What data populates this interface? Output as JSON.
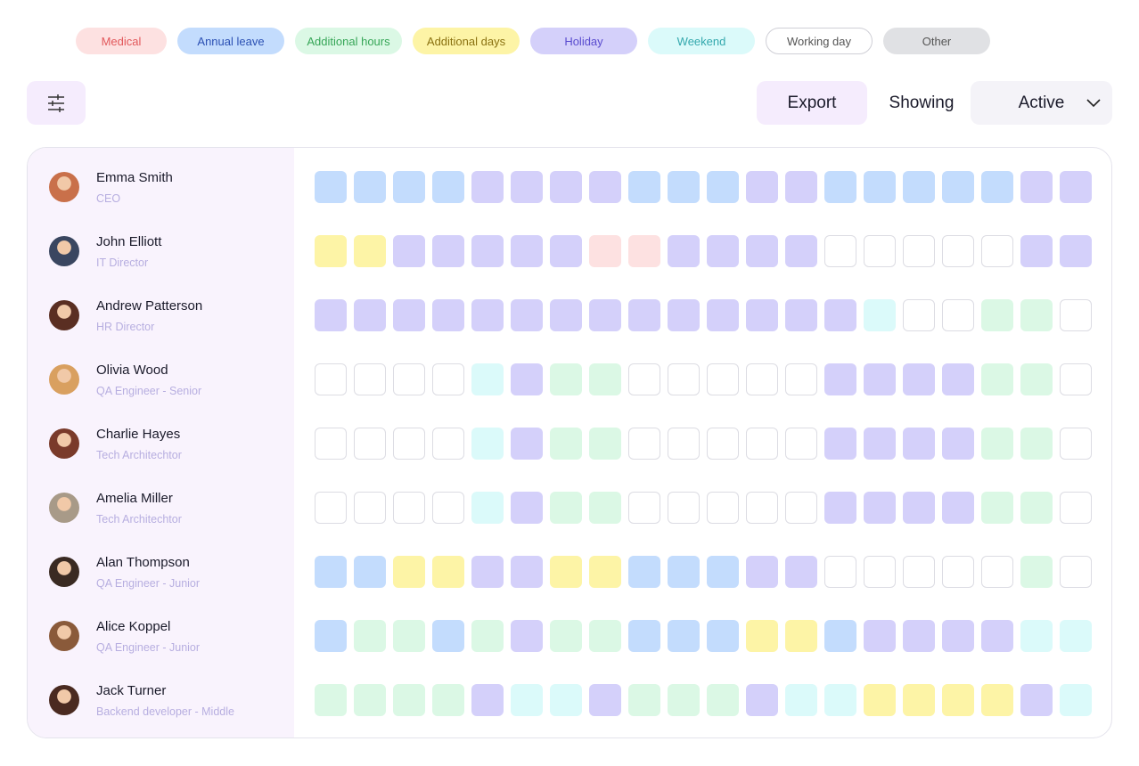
{
  "legend": [
    {
      "label": "Medical",
      "color": "#fde1e1",
      "text_color": "#e2585b"
    },
    {
      "label": "Annual leave",
      "color": "#c3dcfd",
      "text_color": "#2b50b3"
    },
    {
      "label": "Additional hours",
      "color": "#dbf8e5",
      "text_color": "#36a657"
    },
    {
      "label": "Additional days",
      "color": "#fdf4a6",
      "text_color": "#8a7110"
    },
    {
      "label": "Holiday",
      "color": "#d4d0fa",
      "text_color": "#5a4ccf"
    },
    {
      "label": "Weekend",
      "color": "#dbfafa",
      "text_color": "#33a8ad"
    },
    {
      "label": "Working day",
      "color": "#ffffff",
      "text_color": "#555555"
    },
    {
      "label": "Other",
      "color": "#e0e1e4",
      "text_color": "#555555"
    }
  ],
  "toolbar": {
    "export": "Export",
    "showing": "Showing",
    "filter_value": "Active"
  },
  "employees": [
    {
      "name": "Emma Smith",
      "role": "CEO",
      "days": [
        1,
        1,
        1,
        1,
        4,
        4,
        4,
        4,
        1,
        1,
        1,
        4,
        4,
        1,
        1,
        1,
        1,
        1,
        4,
        4
      ]
    },
    {
      "name": "John Elliott",
      "role": "IT Director",
      "days": [
        3,
        3,
        4,
        4,
        4,
        4,
        4,
        0,
        0,
        4,
        4,
        4,
        4,
        6,
        6,
        6,
        6,
        6,
        4,
        4
      ]
    },
    {
      "name": "Andrew Patterson",
      "role": "HR Director",
      "days": [
        4,
        4,
        4,
        4,
        4,
        4,
        4,
        4,
        4,
        4,
        4,
        4,
        4,
        4,
        5,
        6,
        6,
        2,
        2,
        6
      ]
    },
    {
      "name": "Olivia Wood",
      "role": "QA Engineer - Senior",
      "days": [
        6,
        6,
        6,
        6,
        5,
        4,
        2,
        2,
        6,
        6,
        6,
        6,
        6,
        4,
        4,
        4,
        4,
        2,
        2,
        6
      ]
    },
    {
      "name": "Charlie Hayes",
      "role": "Tech Architechtor",
      "days": [
        6,
        6,
        6,
        6,
        5,
        4,
        2,
        2,
        6,
        6,
        6,
        6,
        6,
        4,
        4,
        4,
        4,
        2,
        2,
        6
      ]
    },
    {
      "name": "Amelia Miller",
      "role": "Tech Architechtor",
      "days": [
        6,
        6,
        6,
        6,
        5,
        4,
        2,
        2,
        6,
        6,
        6,
        6,
        6,
        4,
        4,
        4,
        4,
        2,
        2,
        6
      ]
    },
    {
      "name": "Alan Thompson",
      "role": "QA Engineer - Junior",
      "days": [
        1,
        1,
        3,
        3,
        4,
        4,
        3,
        3,
        1,
        1,
        1,
        4,
        4,
        6,
        6,
        6,
        6,
        6,
        2,
        6
      ]
    },
    {
      "name": "Alice Koppel",
      "role": "QA Engineer - Junior",
      "days": [
        1,
        2,
        2,
        1,
        2,
        4,
        2,
        2,
        1,
        1,
        1,
        3,
        3,
        1,
        4,
        4,
        4,
        4,
        5,
        5
      ]
    },
    {
      "name": "Jack Turner",
      "role": "Backend developer - Middle",
      "days": [
        2,
        2,
        2,
        2,
        4,
        5,
        5,
        4,
        2,
        2,
        2,
        4,
        5,
        5,
        3,
        3,
        3,
        3,
        4,
        5
      ]
    }
  ]
}
